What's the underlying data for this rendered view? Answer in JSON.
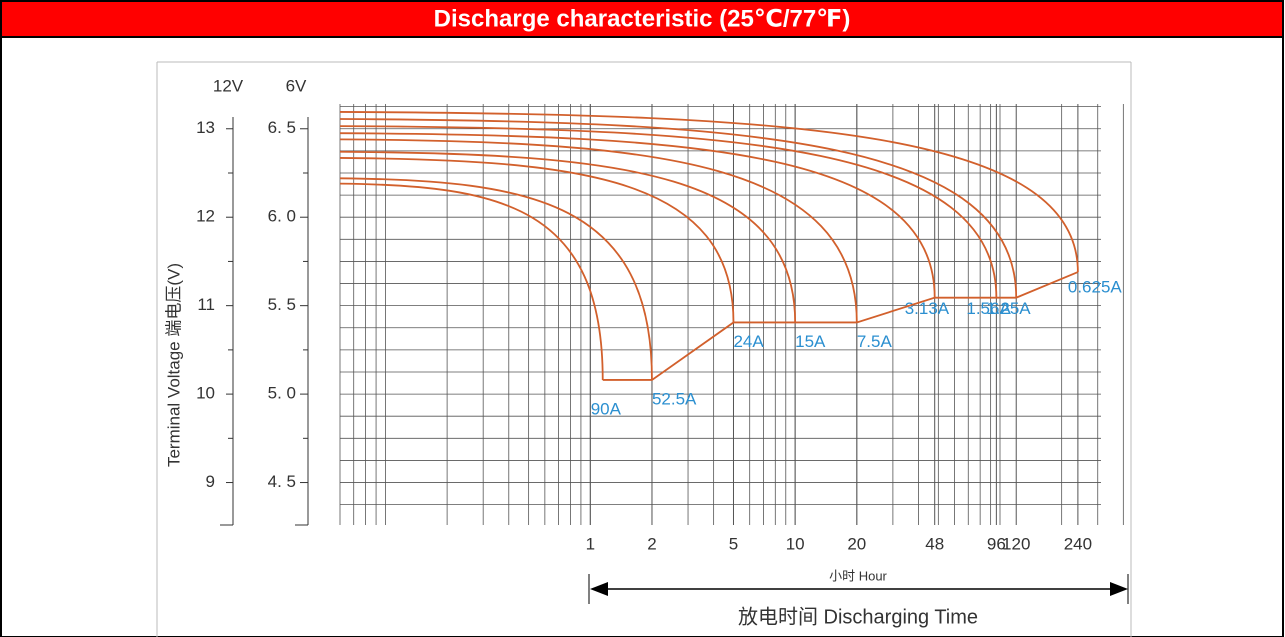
{
  "chart_data": {
    "type": "line",
    "title": "Discharge characteristic (25℃/77℉)",
    "y_axis_label": "Terminal Voltage 端电压(V)",
    "y_axis_unit": "12V",
    "y2_axis_unit": "6V",
    "x_axis_unit_label": "小时   Hour",
    "x_axis_label": "放电时间 Discharging Time",
    "xscale": "log",
    "xlim": [
      0.06,
      436
    ],
    "xticks": [
      1,
      2,
      5,
      10,
      20,
      48,
      96,
      120,
      240
    ],
    "ylim": [
      8.52,
      13.28
    ],
    "yticks": [
      9,
      10,
      11,
      12,
      13
    ],
    "y2lim": [
      4.26,
      6.64
    ],
    "y2ticks": [
      {
        "value": 4.5,
        "label": "4. 5"
      },
      {
        "value": 5.0,
        "label": "5. 0"
      },
      {
        "value": 5.5,
        "label": "5. 5"
      },
      {
        "value": 6.0,
        "label": "6. 0"
      },
      {
        "value": 6.5,
        "label": "6. 5"
      }
    ],
    "grid": true,
    "curve_color": "#d2602c",
    "label_color": "#2b8fd0",
    "series": [
      {
        "name": "90A",
        "values": [
          12.38,
          10.16
        ],
        "end_time": 1.15
      },
      {
        "name": "52.5A",
        "values": [
          12.44,
          10.16
        ],
        "end_time": 2
      },
      {
        "name": "24A",
        "values": [
          12.67,
          10.81
        ],
        "end_time": 5
      },
      {
        "name": "15A",
        "values": [
          12.74,
          10.81
        ],
        "end_time": 10
      },
      {
        "name": "7.5A",
        "values": [
          12.88,
          10.81
        ],
        "end_time": 20
      },
      {
        "name": "3.13A",
        "values": [
          12.95,
          11.09
        ],
        "end_time": 48
      },
      {
        "name": "1.56A",
        "values": [
          13.03,
          11.09
        ],
        "end_time": 96
      },
      {
        "name": "1.25A",
        "values": [
          13.11,
          11.09
        ],
        "end_time": 120
      },
      {
        "name": "0.625A",
        "values": [
          13.19,
          11.38
        ],
        "end_time": 240
      }
    ]
  }
}
